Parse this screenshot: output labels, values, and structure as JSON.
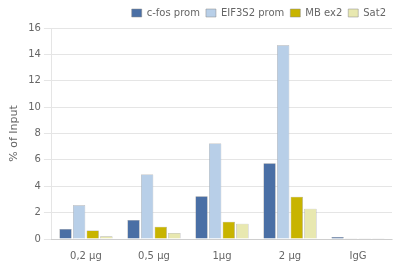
{
  "chart_data": {
    "type": "bar",
    "categories": [
      "0,2 μg",
      "0,5 μg",
      "1μg",
      "2 μg",
      "IgG"
    ],
    "series": [
      {
        "name": "c-fos prom",
        "color": "#4a6fa5",
        "values": [
          0.75,
          1.45,
          3.25,
          5.75,
          0.15
        ]
      },
      {
        "name": "EIF3S2 prom",
        "color": "#b8cfe8",
        "values": [
          2.55,
          4.9,
          7.25,
          14.7,
          0.05
        ]
      },
      {
        "name": "MB ex2",
        "color": "#c8b400",
        "values": [
          0.65,
          0.92,
          1.3,
          3.2,
          0.05
        ]
      },
      {
        "name": "Sat2",
        "color": "#e8e8b0",
        "values": [
          0.2,
          0.45,
          1.15,
          2.3,
          0.05
        ]
      }
    ],
    "ylabel": "% of Input",
    "ylim": [
      0,
      16
    ],
    "yticks": [
      0,
      2,
      4,
      6,
      8,
      10,
      12,
      14,
      16
    ],
    "grid": true,
    "legend": "upper right"
  }
}
